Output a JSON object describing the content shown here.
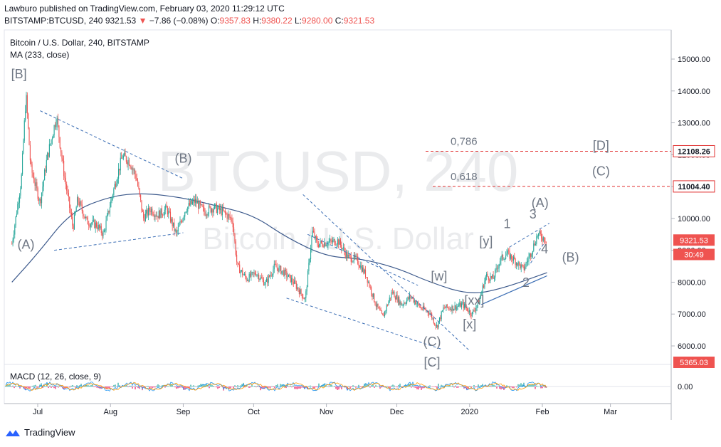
{
  "header": {
    "publisher_line": "Lawburo published on TradingView.com, February 03, 2020 11:29:12 UTC",
    "symbol": "BITSTAMP:BTCUSD, 240",
    "last": "9321.53",
    "change_arrow": "▼",
    "change": "−7.86 (−0.08%)",
    "o_label": "O:",
    "o_val": "9357.83",
    "h_label": "H:",
    "h_val": "9380.22",
    "l_label": "L:",
    "l_val": "9280.00",
    "c_label": "C:",
    "c_val": "9321.53"
  },
  "legend": {
    "title": "Bitcoin / U.S. Dollar, 240, BITSTAMP",
    "ma": "MA (233, close)",
    "macd": "MACD (12, 26, close, 9)"
  },
  "watermark": {
    "line1": "BTCUSD, 240",
    "line2": "Bitcoin / U.S. Dollar"
  },
  "footer": {
    "brand": "TradingView"
  },
  "colors": {
    "up": "#26a69a",
    "down": "#ef5350",
    "ma": "#3d5a8c",
    "trend": "#3d6fb5",
    "level": "#e03131",
    "wave": "#6f7784"
  },
  "chart_data": {
    "type": "candlestick",
    "ylim": [
      5365.03,
      15500
    ],
    "y_ticks": [
      6000,
      7000,
      8000,
      9000,
      10000,
      11000,
      12000,
      13000,
      14000,
      15000
    ],
    "y_tick_labels": [
      "6000.00",
      "7000.00",
      "8000.00",
      "9000.00",
      "10000.00",
      "11000.00",
      "12000.00",
      "13000.00",
      "14000.00",
      "15000.00"
    ],
    "x_ticks": [
      "Jul",
      "Aug",
      "Sep",
      "Oct",
      "Nov",
      "Dec",
      "2020",
      "Feb",
      "Mar"
    ],
    "price_tags": [
      {
        "label": "12108.26",
        "value": 12108.26,
        "kind": "level"
      },
      {
        "label": "11004.40",
        "value": 11004.4,
        "kind": "level"
      },
      {
        "label": "9321.53",
        "value": 9321.53,
        "kind": "last"
      },
      {
        "label": "30:49",
        "value": 8870,
        "kind": "timer"
      },
      {
        "label": "5365.03",
        "value": 5365.03,
        "kind": "low"
      }
    ],
    "fib_levels": [
      {
        "label": "0,786",
        "value": 12108.26
      },
      {
        "label": "0,618",
        "value": 11004.4
      }
    ],
    "price_path": [
      [
        "Jun 20",
        9200
      ],
      [
        "Jun 24",
        11200
      ],
      [
        "Jun 26",
        13880
      ],
      [
        "Jun 28",
        11600
      ],
      [
        "Jul 2",
        10500
      ],
      [
        "Jul 5",
        11900
      ],
      [
        "Jul 9",
        13200
      ],
      [
        "Jul 12",
        11500
      ],
      [
        "Jul 16",
        9700
      ],
      [
        "Jul 18",
        10600
      ],
      [
        "Jul 22",
        9900
      ],
      [
        "Jul 26",
        9800
      ],
      [
        "Jul 29",
        9500
      ],
      [
        "Aug 2",
        10800
      ],
      [
        "Aug 6",
        11950
      ],
      [
        "Aug 9",
        11800
      ],
      [
        "Aug 12",
        11300
      ],
      [
        "Aug 15",
        10000
      ],
      [
        "Aug 18",
        10300
      ],
      [
        "Aug 21",
        10100
      ],
      [
        "Aug 25",
        10300
      ],
      [
        "Aug 29",
        9500
      ],
      [
        "Sep 2",
        10300
      ],
      [
        "Sep 6",
        10550
      ],
      [
        "Sep 10",
        10200
      ],
      [
        "Sep 14",
        10350
      ],
      [
        "Sep 18",
        10200
      ],
      [
        "Sep 22",
        9950
      ],
      [
        "Sep 24",
        8500
      ],
      [
        "Sep 28",
        8100
      ],
      [
        "Oct 2",
        8300
      ],
      [
        "Oct 6",
        7950
      ],
      [
        "Oct 10",
        8500
      ],
      [
        "Oct 14",
        8300
      ],
      [
        "Oct 18",
        8000
      ],
      [
        "Oct 23",
        7450
      ],
      [
        "Oct 26",
        9600
      ],
      [
        "Oct 28",
        9200
      ],
      [
        "Nov 2",
        9250
      ],
      [
        "Nov 6",
        9300
      ],
      [
        "Nov 10",
        8800
      ],
      [
        "Nov 14",
        8700
      ],
      [
        "Nov 18",
        8200
      ],
      [
        "Nov 22",
        7300
      ],
      [
        "Nov 25",
        6900
      ],
      [
        "Nov 29",
        7700
      ],
      [
        "Dec 3",
        7300
      ],
      [
        "Dec 7",
        7550
      ],
      [
        "Dec 11",
        7200
      ],
      [
        "Dec 15",
        7050
      ],
      [
        "Dec 18",
        6600
      ],
      [
        "Dec 21",
        7200
      ],
      [
        "Dec 25",
        7200
      ],
      [
        "Dec 29",
        7300
      ],
      [
        "Jan 2",
        7000
      ],
      [
        "Jan 5",
        7400
      ],
      [
        "Jan 8",
        8200
      ],
      [
        "Jan 11",
        8100
      ],
      [
        "Jan 14",
        8700
      ],
      [
        "Jan 17",
        8900
      ],
      [
        "Jan 20",
        8700
      ],
      [
        "Jan 24",
        8400
      ],
      [
        "Jan 27",
        8900
      ],
      [
        "Jan 30",
        9500
      ],
      [
        "Feb 3",
        9321.53
      ]
    ],
    "ma_path": [
      [
        "Jun 20",
        8000
      ],
      [
        "Jul 1",
        8900
      ],
      [
        "Jul 15",
        10200
      ],
      [
        "Aug 1",
        10700
      ],
      [
        "Aug 15",
        10800
      ],
      [
        "Sep 1",
        10650
      ],
      [
        "Sep 15",
        10400
      ],
      [
        "Oct 1",
        10100
      ],
      [
        "Oct 15",
        9400
      ],
      [
        "Nov 1",
        8800
      ],
      [
        "Nov 15",
        8750
      ],
      [
        "Dec 1",
        8450
      ],
      [
        "Dec 15",
        8000
      ],
      [
        "Jan 1",
        7600
      ],
      [
        "Jan 15",
        7800
      ],
      [
        "Feb 3",
        8300
      ]
    ],
    "annotations": [
      {
        "label": "[B]",
        "date": "Jun 23",
        "value": 14400
      },
      {
        "label": "(A)",
        "date": "Jun 26",
        "value": 9050
      },
      {
        "label": "(B)",
        "date": "Sep 1",
        "value": 11750
      },
      {
        "label": "[w]",
        "date": "Dec 19",
        "value": 8050
      },
      {
        "label": "[x]",
        "date": "Jan 1",
        "value": 6550
      },
      {
        "label": "[y]",
        "date": "Jan 8",
        "value": 9150
      },
      {
        "label": "[xx]",
        "date": "Jan 3",
        "value": 7300
      },
      {
        "label": "1",
        "date": "Jan 17",
        "value": 9700
      },
      {
        "label": "2",
        "date": "Jan 25",
        "value": 7850
      },
      {
        "label": "3",
        "date": "Jan 28",
        "value": 10000
      },
      {
        "label": "4",
        "date": "Feb 2",
        "value": 8900
      },
      {
        "label": "(A)",
        "date": "Jan 31",
        "value": 10350
      },
      {
        "label": "(B)",
        "date": "Feb 13",
        "value": 8650
      },
      {
        "label": "(C)",
        "date": "Dec 16",
        "value": 6000
      },
      {
        "label": "[C]",
        "date": "Dec 16",
        "value": 5350
      },
      {
        "label": "(C)",
        "date": "Feb 26",
        "value": 11350
      },
      {
        "label": "[D]",
        "date": "Feb 26",
        "value": 12150
      }
    ],
    "macd": {
      "zero_label": "0.00"
    }
  }
}
